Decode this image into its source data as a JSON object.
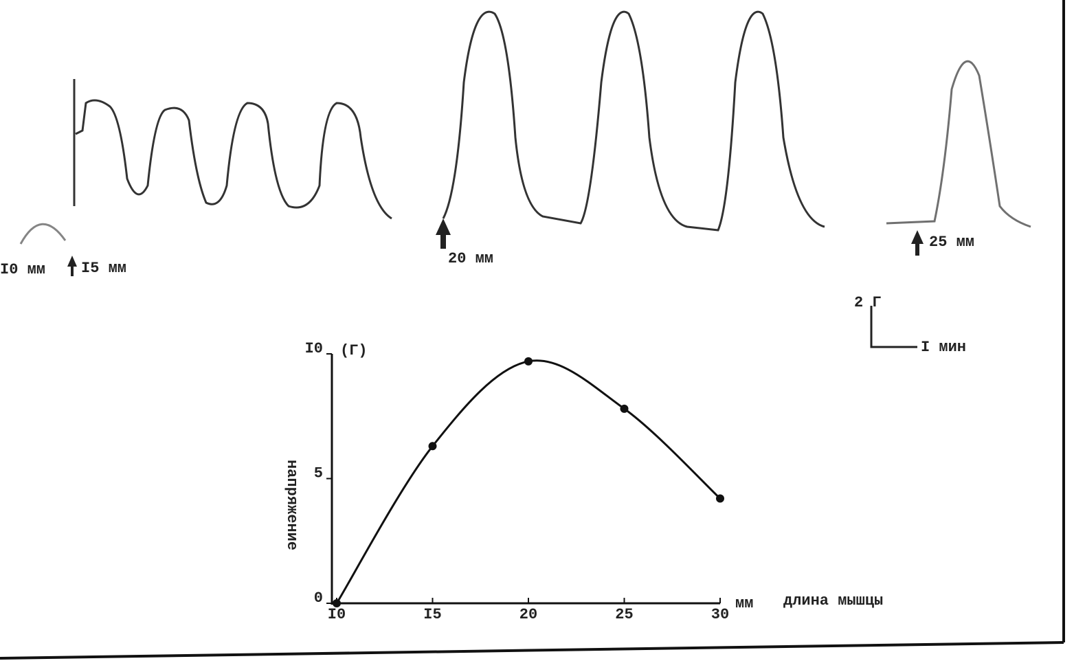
{
  "recording": {
    "labels": [
      "I0 мм",
      "I5 мм",
      "20 мм",
      "25 мм"
    ],
    "scale_force": "2 Г",
    "scale_time": "I мин"
  },
  "chart_data": {
    "type": "line",
    "x": [
      10,
      15,
      20,
      25,
      30
    ],
    "series": [
      {
        "color": "#111111",
        "values": [
          0,
          6.3,
          9.7,
          7.8,
          4.2
        ]
      }
    ],
    "xlim": [
      10,
      30
    ],
    "ylim": [
      0,
      10
    ],
    "xticks": [
      {
        "value": 10,
        "label": "I0"
      },
      {
        "value": 15,
        "label": "I5"
      },
      20,
      25,
      30
    ],
    "yticks": [
      0,
      5,
      {
        "value": 10,
        "label": "I0"
      }
    ],
    "x_unit": "мм",
    "y_unit": "(Г)",
    "xlabel": "длина мышцы",
    "ylabel": "напряжение",
    "grid": false,
    "markers": true
  }
}
